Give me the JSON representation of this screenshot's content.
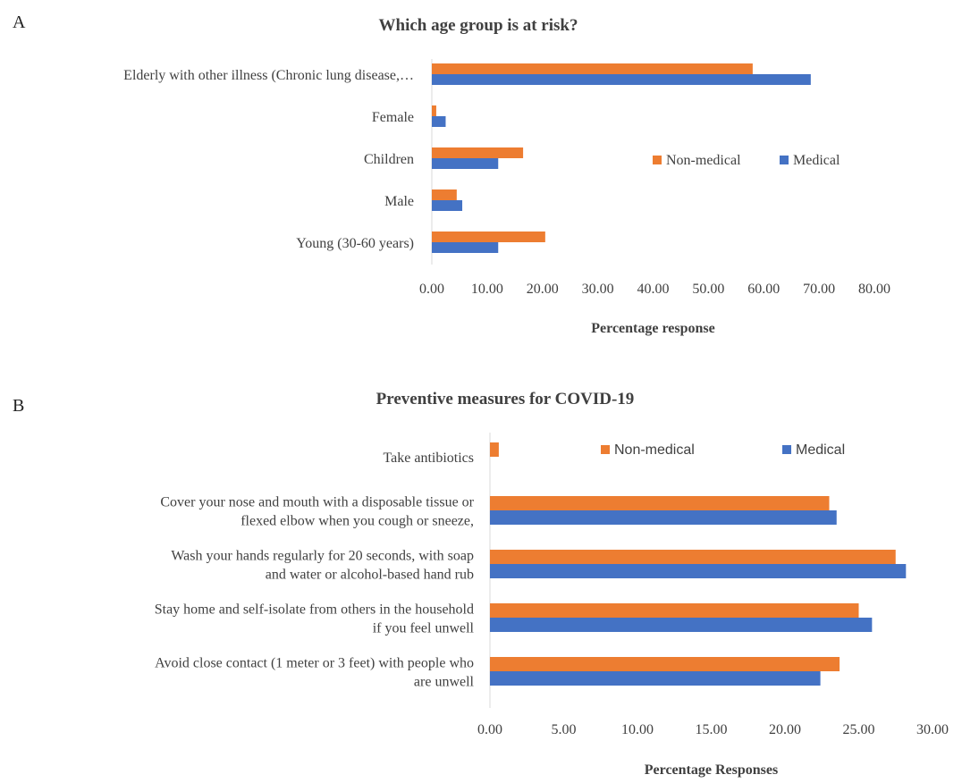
{
  "panels": {
    "a": "A",
    "b": "B"
  },
  "colors": {
    "non_medical": "#ED7D31",
    "medical": "#4472C4",
    "axis": "#d9d9d9"
  },
  "chart_data": [
    {
      "type": "bar",
      "orientation": "horizontal",
      "title": "Which age group is at risk?",
      "xlabel": "Percentage response",
      "ylabel": "",
      "xlim": [
        0,
        80
      ],
      "ticks": [
        "0.00",
        "10.00",
        "20.00",
        "30.00",
        "40.00",
        "50.00",
        "60.00",
        "70.00",
        "80.00"
      ],
      "legend_position": "right",
      "categories": [
        [
          "Elderly with other illness (Chronic lung disease,…"
        ],
        [
          "Female"
        ],
        [
          "Children"
        ],
        [
          "Male"
        ],
        [
          "Young (30-60 years)"
        ]
      ],
      "series": [
        {
          "name": "Non-medical",
          "values": [
            58.0,
            0.8,
            16.5,
            4.5,
            20.5
          ]
        },
        {
          "name": "Medical",
          "values": [
            68.5,
            2.5,
            12.0,
            5.5,
            12.0
          ]
        }
      ]
    },
    {
      "type": "bar",
      "orientation": "horizontal",
      "title": "Preventive measures for COVID-19",
      "xlabel": "Percentage Responses",
      "ylabel": "",
      "xlim": [
        0,
        30
      ],
      "ticks": [
        "0.00",
        "5.00",
        "10.00",
        "15.00",
        "20.00",
        "25.00",
        "30.00"
      ],
      "legend_position": "top-right",
      "categories": [
        [
          "Take antibiotics"
        ],
        [
          "Cover your nose and mouth with a disposable tissue or",
          "flexed elbow when you cough or sneeze,"
        ],
        [
          "Wash your hands regularly for 20 seconds, with soap",
          "and water or alcohol-based hand rub"
        ],
        [
          "Stay home and self-isolate from others in the household",
          "if you feel unwell"
        ],
        [
          "Avoid close contact (1 meter or 3 feet) with people who",
          "are unwell"
        ]
      ],
      "series": [
        {
          "name": "Non-medical",
          "values": [
            0.6,
            23.0,
            27.5,
            25.0,
            23.7
          ]
        },
        {
          "name": "Medical",
          "values": [
            0.0,
            23.5,
            28.2,
            25.9,
            22.4
          ]
        }
      ]
    }
  ]
}
